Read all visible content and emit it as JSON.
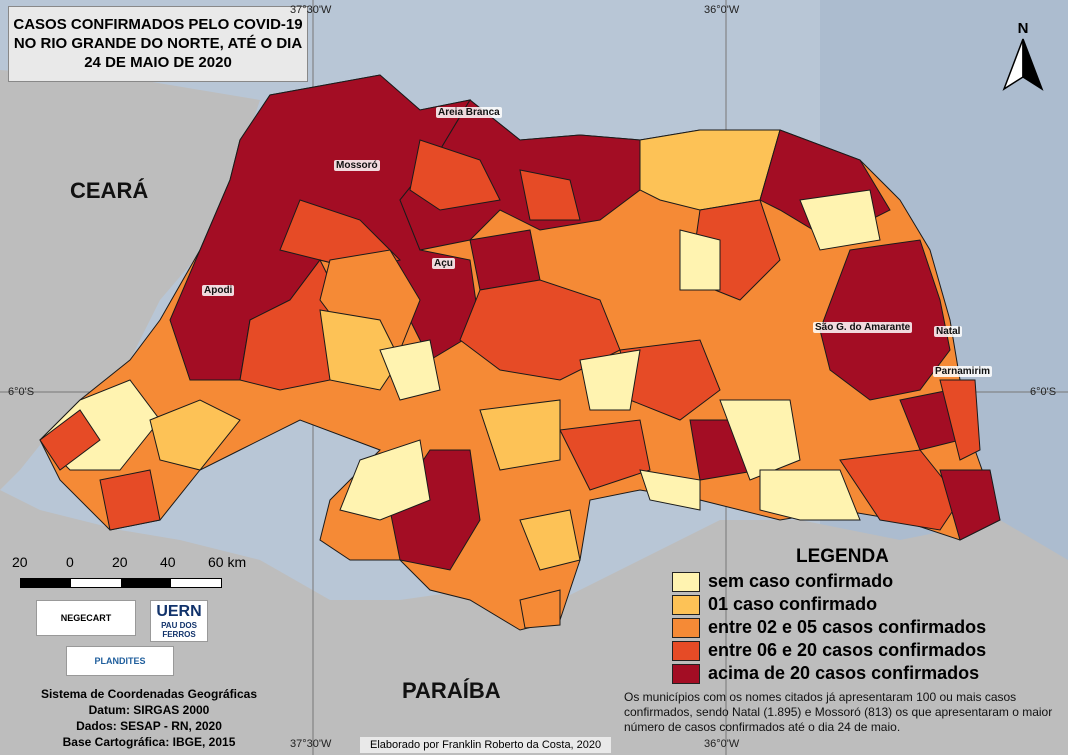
{
  "title": [
    "CASOS CONFIRMADOS PELO COVID-19",
    "NO RIO GRANDE DO NORTE, ATÉ O DIA",
    "24 DE MAIO DE 2020"
  ],
  "graticule": {
    "top_left": "37°30'W",
    "top_right": "36°0'W",
    "bottom_left": "37°30'W",
    "bottom_right": "36°0'W",
    "left": "6°0'S",
    "right": "6°0'S"
  },
  "neighbors": {
    "west": "CEARÁ",
    "south": "PARAÍBA"
  },
  "cities": [
    "Areia Branca",
    "Mossoró",
    "Açu",
    "Apodi",
    "São G. do Amarante",
    "Natal",
    "Parnamirim"
  ],
  "north_arrow": "N",
  "scale": {
    "labels": [
      "20",
      "0",
      "20",
      "40",
      "60 km"
    ]
  },
  "legend": {
    "title": "LEGENDA",
    "items": [
      {
        "label": "sem caso confirmado",
        "color": "#fff3b0"
      },
      {
        "label": "01 caso confirmado",
        "color": "#fdc256"
      },
      {
        "label": "entre 02 e 05 casos confirmados",
        "color": "#f58a36"
      },
      {
        "label": "entre 06 e 20 casos confirmados",
        "color": "#e64b26"
      },
      {
        "label": "acima de 20 casos confirmados",
        "color": "#a30d24"
      }
    ]
  },
  "note": "Os municípios com os nomes citados já apresentaram 100 ou mais casos confirmados, sendo Natal (1.895) e Mossoró (813) os que apresentaram o maior número de casos confirmados até o dia 24 de maio.",
  "info": [
    "Sistema de Coordenadas Geográficas",
    "Datum: SIRGAS 2000",
    "Dados: SESAP - RN, 2020",
    "Base Cartográfica: IBGE, 2015"
  ],
  "credit": "Elaborado por Franklin Roberto da Costa, 2020",
  "logos": {
    "negecart": "NEGECART",
    "uern": "UERN",
    "uern_sub": "PAU DOS FERROS",
    "plandites": "PLANDITES"
  },
  "colors": {
    "sea": "#b8c6d6",
    "land": "#bdbdbd",
    "border": "#1a1a1a"
  }
}
